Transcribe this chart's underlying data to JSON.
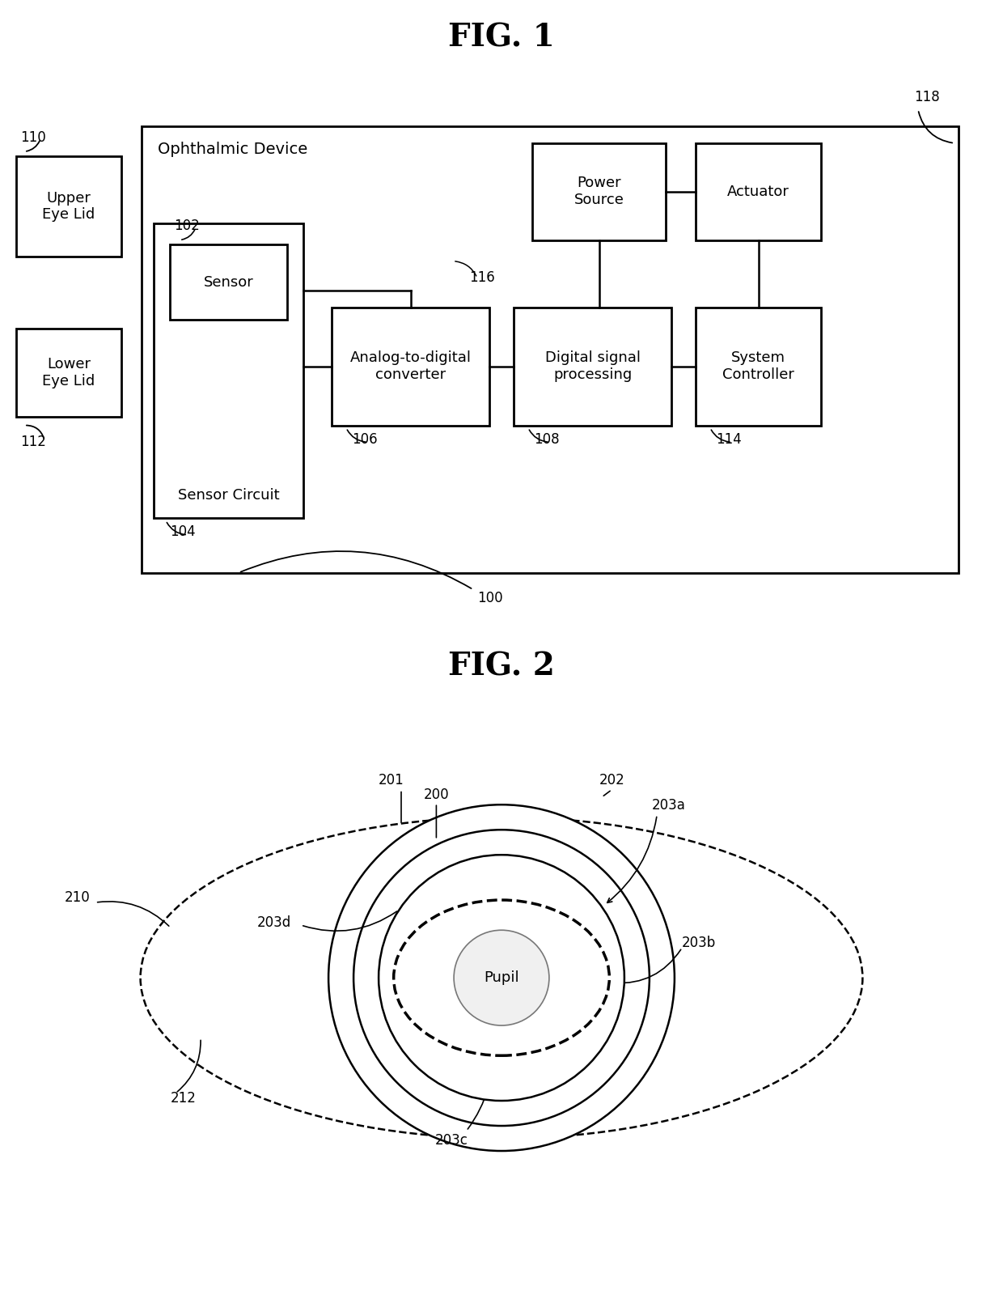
{
  "fig1_title": "FIG. 1",
  "fig2_title": "FIG. 2",
  "background_color": "#ffffff",
  "line_color": "#000000",
  "fig1": {
    "ophthalmic_device_label": "Ophthalmic Device",
    "upper_eyelid": {
      "label": "Upper\nEye Lid",
      "ref": "110"
    },
    "lower_eyelid": {
      "label": "Lower\nEye Lid",
      "ref": "112"
    },
    "sensor_circuit_label": "Sensor Circuit",
    "sensor_label": "Sensor",
    "adc_label": "Analog-to-digital\nconverter",
    "dsp_label": "Digital signal\nprocessing",
    "power_label": "Power\nSource",
    "actuator_label": "Actuator",
    "controller_label": "System\nController"
  },
  "fig2": {
    "pupil_label": "Pupil",
    "refs": {
      "200": "200",
      "201": "201",
      "202": "202",
      "203a": "203a",
      "203b": "203b",
      "203c": "203c",
      "203d": "203d",
      "210": "210",
      "212": "212"
    }
  }
}
